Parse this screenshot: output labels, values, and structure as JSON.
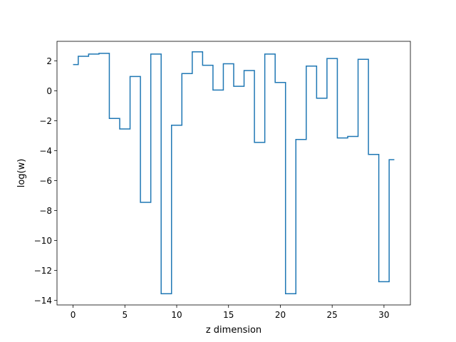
{
  "chart_data": {
    "type": "line",
    "drawstyle": "steps-mid",
    "title": "",
    "xlabel": "z dimension",
    "ylabel": "log(w)",
    "xlim": [
      -1.55,
      32.55
    ],
    "ylim": [
      -14.3,
      3.3
    ],
    "xticks": [
      0,
      5,
      10,
      15,
      20,
      25,
      30
    ],
    "xtick_labels": [
      "0",
      "5",
      "10",
      "15",
      "20",
      "25",
      "30"
    ],
    "yticks": [
      -14,
      -12,
      -10,
      -8,
      -6,
      -4,
      -2,
      0,
      2
    ],
    "ytick_labels": [
      "−14",
      "−12",
      "−10",
      "−8",
      "−6",
      "−4",
      "−2",
      "0",
      "2"
    ],
    "grid": false,
    "legend": "none",
    "color": "#1f77b4",
    "x": [
      0,
      1,
      2,
      3,
      4,
      5,
      6,
      7,
      8,
      9,
      10,
      11,
      12,
      13,
      14,
      15,
      16,
      17,
      18,
      19,
      20,
      21,
      22,
      23,
      24,
      25,
      26,
      27,
      28,
      29,
      30,
      31
    ],
    "y": [
      1.75,
      2.3,
      2.45,
      2.5,
      -1.85,
      -2.55,
      0.95,
      -7.45,
      2.45,
      -13.55,
      -2.3,
      1.15,
      2.6,
      1.7,
      0.05,
      1.8,
      0.3,
      1.35,
      -3.45,
      2.45,
      0.55,
      -13.55,
      -3.25,
      1.65,
      -0.5,
      2.15,
      -3.15,
      -3.05,
      2.1,
      -4.25,
      -12.75,
      -4.6
    ]
  }
}
